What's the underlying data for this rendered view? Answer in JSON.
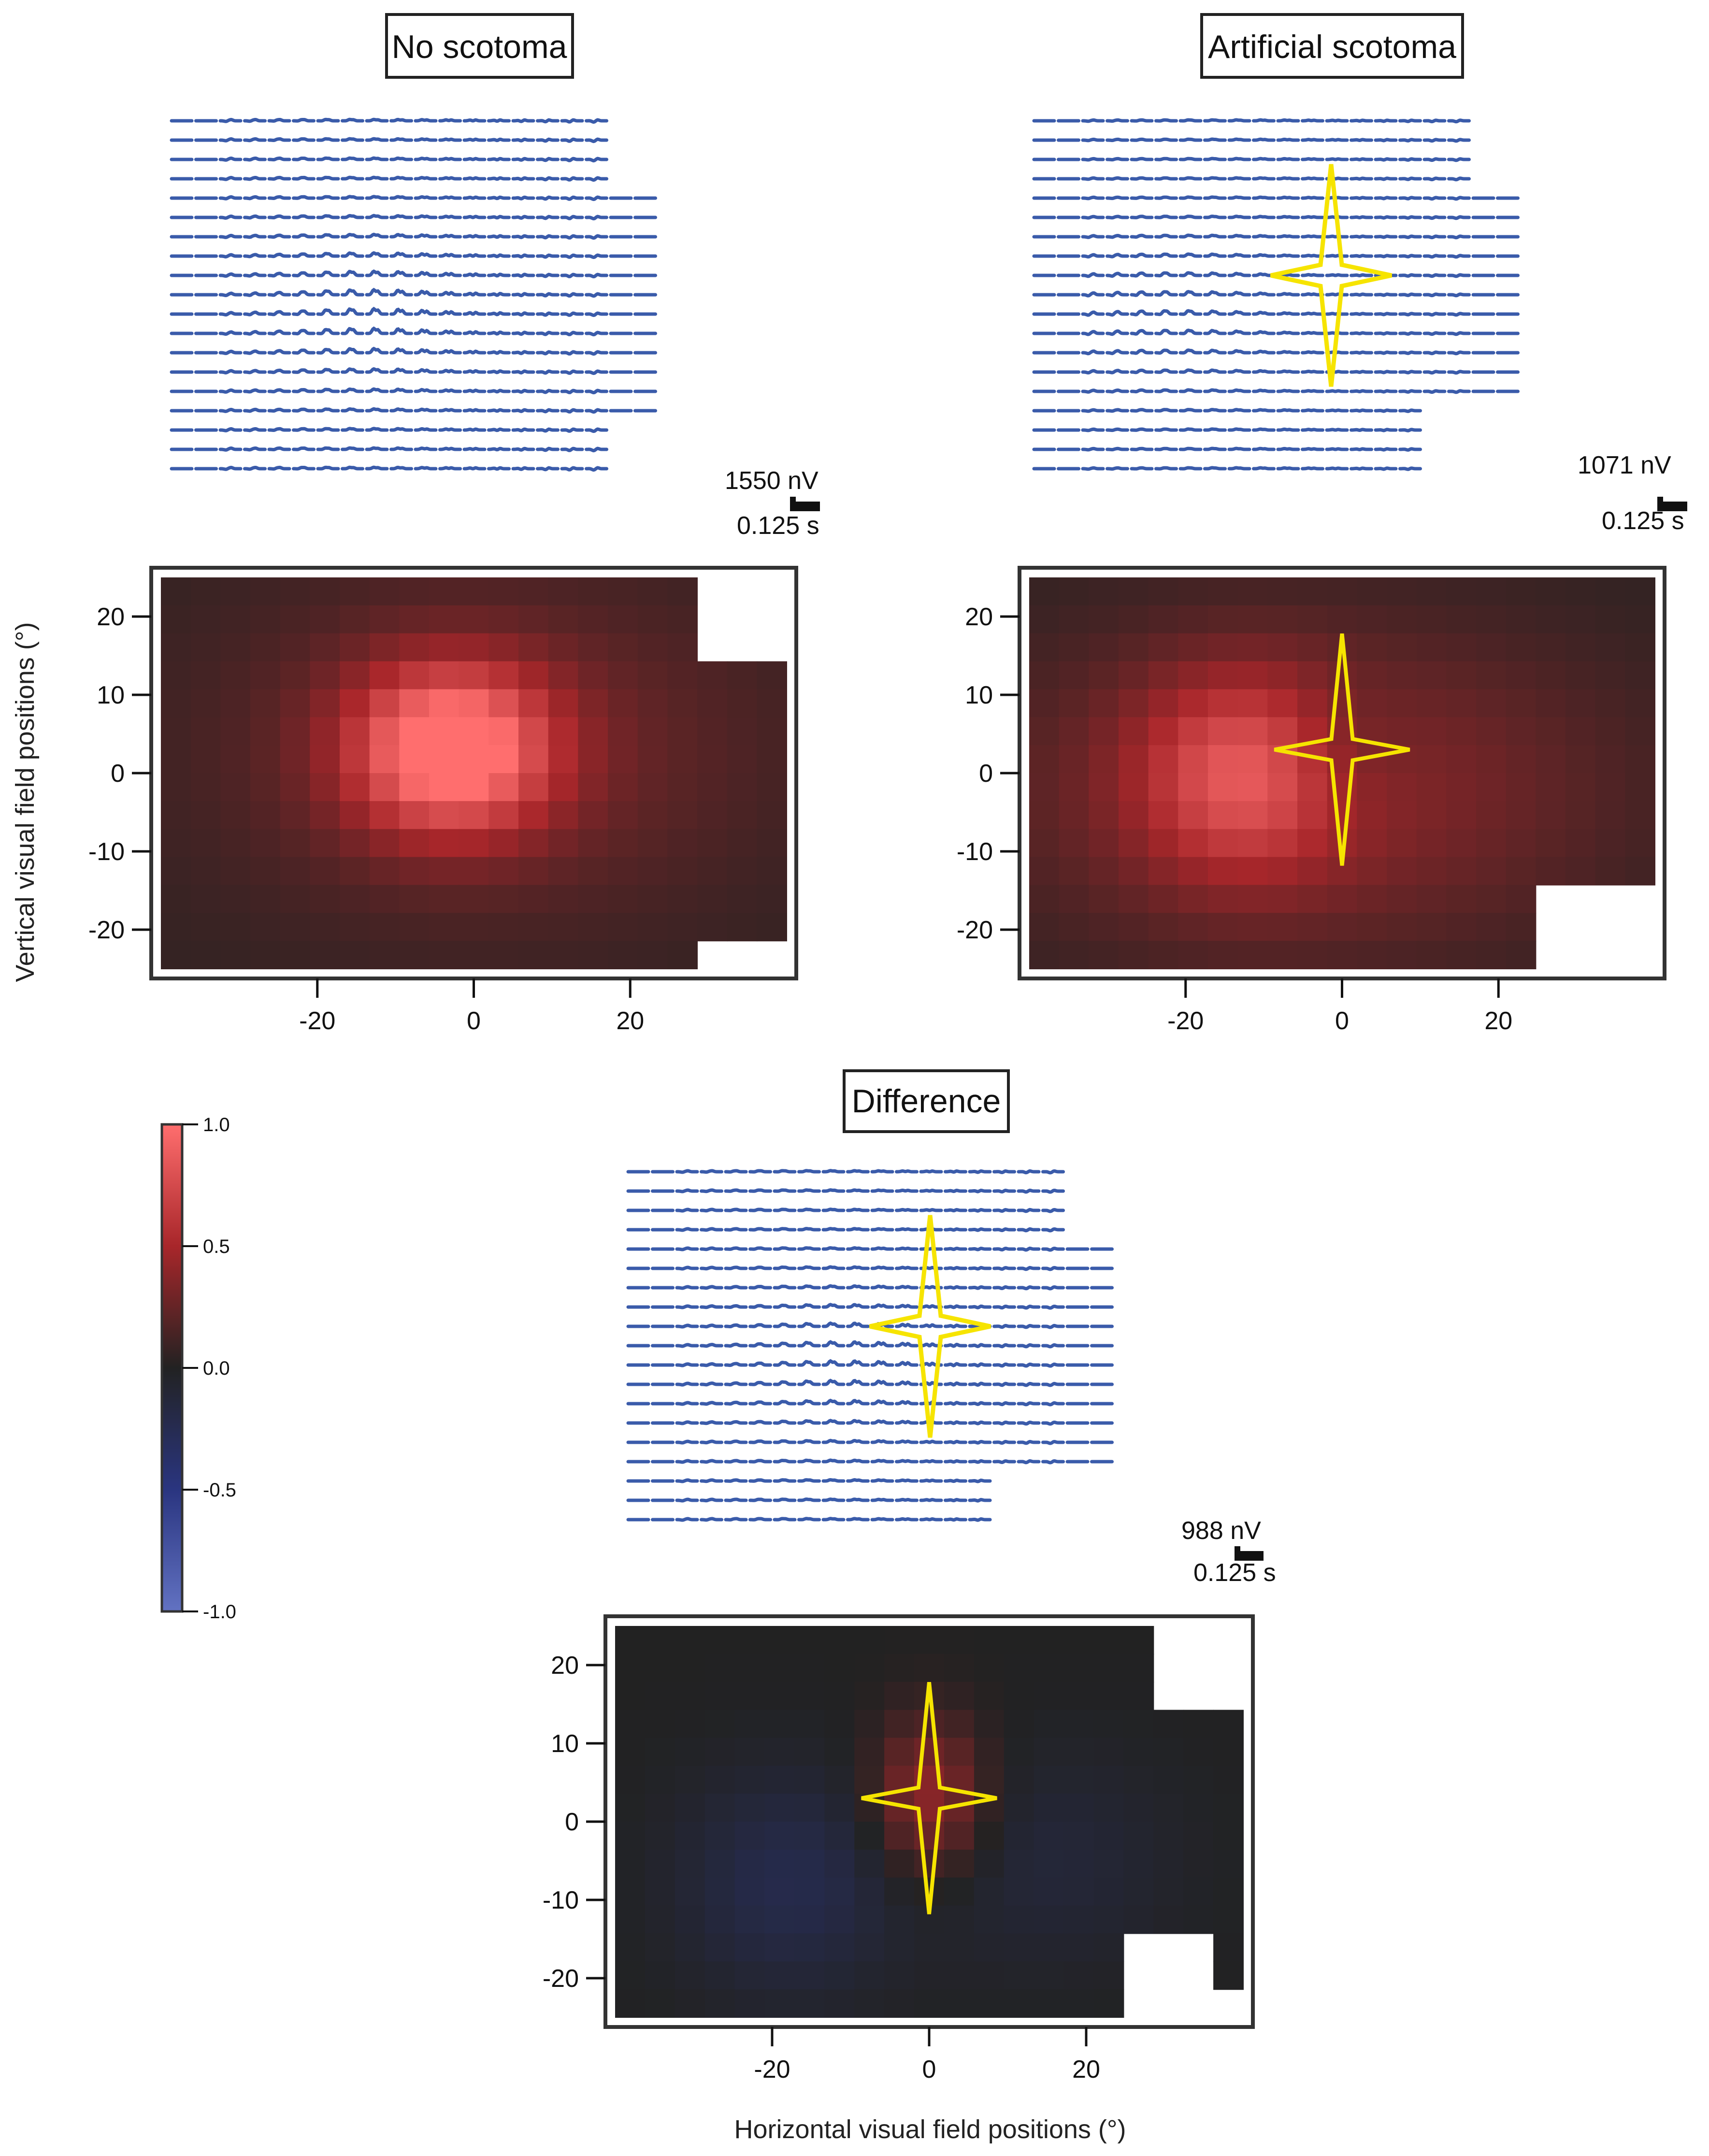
{
  "colors": {
    "trace": "#3A5BAA",
    "scotoma": "#F6E400",
    "neg": "#6272C2",
    "zero": "#222222",
    "pos": "#FF6E6E",
    "frame": "#333333"
  },
  "chart_data": [
    {
      "type": "heatmap",
      "title": "No scotoma",
      "xlabel": "",
      "ylabel": "Vertical visual field positions (°)",
      "xlim": [
        -40,
        40
      ],
      "ylim": [
        -25,
        25
      ],
      "xticks": [
        "-20",
        "0",
        "20"
      ],
      "yticks": [
        "20",
        "10",
        "0",
        "-10",
        "-20"
      ],
      "peak": {
        "x": -3,
        "y": 3,
        "value": 0.95
      },
      "scale_amplitude": "1550 nV",
      "scale_time": "0.125 s",
      "scotoma_marker": false
    },
    {
      "type": "heatmap",
      "title": "Artificial scotoma",
      "xlabel": "",
      "ylabel": "",
      "xlim": [
        -40,
        40
      ],
      "ylim": [
        -25,
        25
      ],
      "xticks": [
        "-20",
        "0",
        "20"
      ],
      "yticks": [
        "20",
        "10",
        "0",
        "-10",
        "-20"
      ],
      "peak": {
        "x": -13,
        "y": 0,
        "value": 0.55
      },
      "scale_amplitude": "1071 nV",
      "scale_time": "0.125 s",
      "scotoma_marker": true,
      "scotoma_center": {
        "x": 0,
        "y": 3
      }
    },
    {
      "type": "heatmap",
      "title": "Difference",
      "xlabel": "Horizontal visual field positions (°)",
      "ylabel": "",
      "xlim": [
        -40,
        40
      ],
      "ylim": [
        -25,
        25
      ],
      "xticks": [
        "-20",
        "0",
        "20"
      ],
      "yticks": [
        "20",
        "10",
        "0",
        "-10",
        "-20"
      ],
      "peak": {
        "x": 0,
        "y": 3,
        "value": 0.45
      },
      "scale_amplitude": "988 nV",
      "scale_time": "0.125 s",
      "scotoma_marker": true,
      "scotoma_center": {
        "x": 0,
        "y": 3
      }
    }
  ],
  "colorbar": {
    "ticks": [
      "1.0",
      "0.5",
      "0.0",
      "-0.5",
      "-1.0"
    ],
    "range": [
      -1,
      1
    ]
  }
}
